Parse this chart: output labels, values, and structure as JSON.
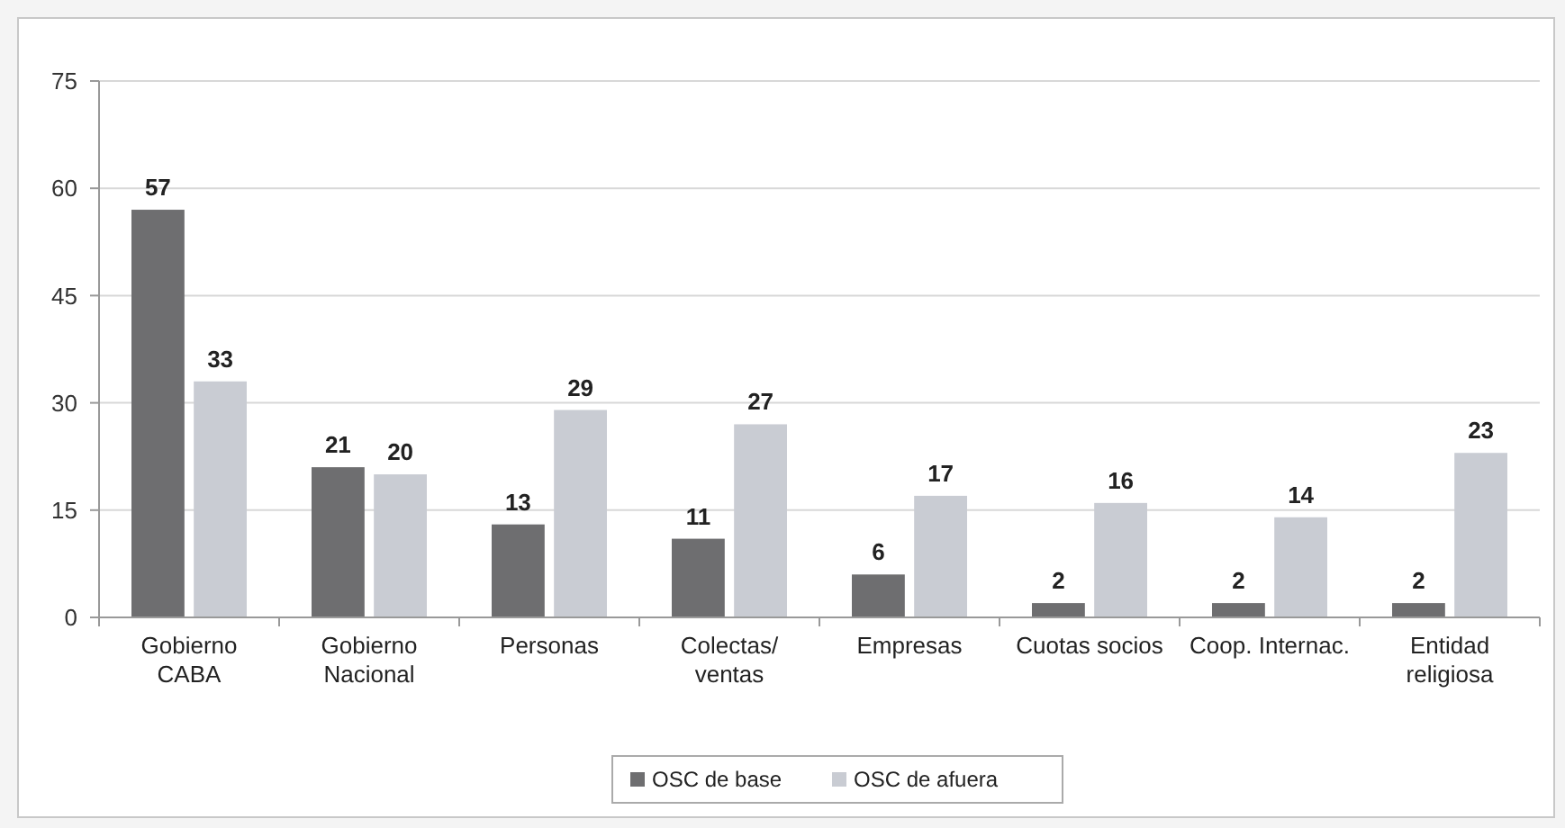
{
  "chart_data": {
    "type": "bar",
    "categories": [
      "Gobierno\nCABA",
      "Gobierno\nNacional",
      "Personas",
      "Colectas/\nventas",
      "Empresas",
      "Cuotas socios",
      "Coop. Internac.",
      "Entidad\nreligiosa"
    ],
    "series": [
      {
        "name": "OSC de base",
        "color": "#6e6e70",
        "values": [
          57,
          21,
          13,
          11,
          6,
          2,
          2,
          2
        ]
      },
      {
        "name": "OSC de afuera",
        "color": "#c9ccd3",
        "values": [
          33,
          20,
          29,
          27,
          17,
          16,
          14,
          23
        ]
      }
    ],
    "ylim": [
      0,
      75
    ],
    "yticks": [
      0,
      15,
      30,
      45,
      60,
      75
    ],
    "grid": "y",
    "legend": "bottom",
    "data_labels": true
  }
}
